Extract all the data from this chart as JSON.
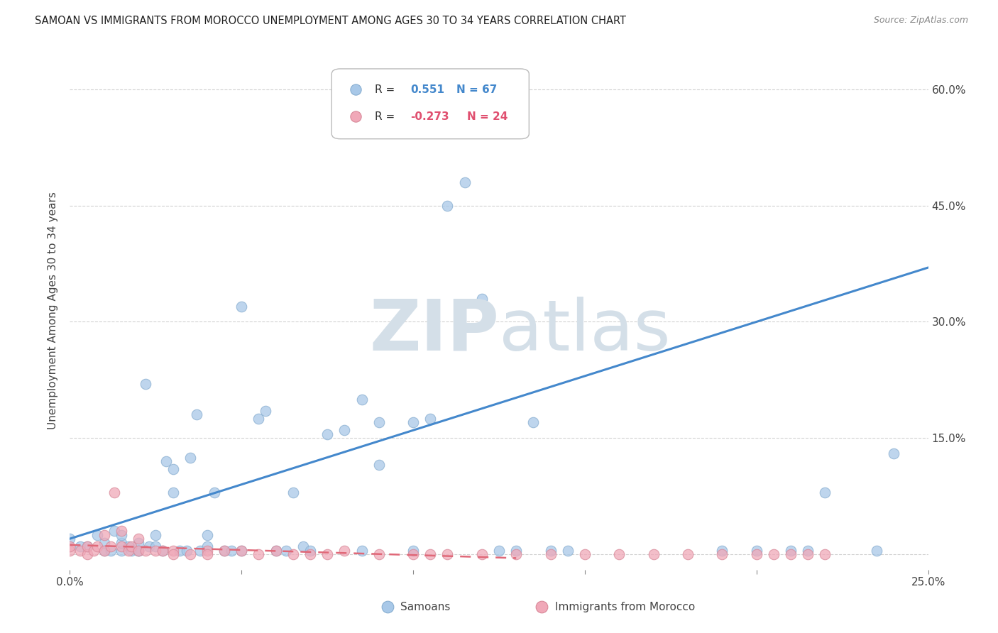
{
  "title": "SAMOAN VS IMMIGRANTS FROM MOROCCO UNEMPLOYMENT AMONG AGES 30 TO 34 YEARS CORRELATION CHART",
  "source": "Source: ZipAtlas.com",
  "ylabel": "Unemployment Among Ages 30 to 34 years",
  "xlim": [
    0.0,
    0.25
  ],
  "ylim": [
    -0.02,
    0.65
  ],
  "xticks": [
    0.0,
    0.05,
    0.1,
    0.15,
    0.2,
    0.25
  ],
  "xtick_labels": [
    "0.0%",
    "",
    "",
    "",
    "",
    "25.0%"
  ],
  "yticks": [
    0.0,
    0.15,
    0.3,
    0.45,
    0.6
  ],
  "ytick_labels_right": [
    "",
    "15.0%",
    "30.0%",
    "45.0%",
    "60.0%"
  ],
  "background_color": "#ffffff",
  "grid_color": "#cccccc",
  "watermark_color": "#d4dfe8",
  "samoan_color": "#a8c8e8",
  "morocco_color": "#f0a8b8",
  "samoan_edge": "#88aed0",
  "morocco_edge": "#d88898",
  "trend_samoan_color": "#4488cc",
  "trend_morocco_color": "#e06878",
  "scatter_alpha": 0.75,
  "marker_size": 110,
  "samoan_points_x": [
    0.0,
    0.003,
    0.005,
    0.008,
    0.01,
    0.01,
    0.012,
    0.013,
    0.015,
    0.015,
    0.015,
    0.017,
    0.018,
    0.02,
    0.02,
    0.02,
    0.022,
    0.023,
    0.025,
    0.025,
    0.027,
    0.028,
    0.03,
    0.03,
    0.032,
    0.034,
    0.035,
    0.037,
    0.038,
    0.04,
    0.04,
    0.042,
    0.045,
    0.047,
    0.05,
    0.05,
    0.055,
    0.057,
    0.06,
    0.063,
    0.065,
    0.068,
    0.07,
    0.075,
    0.08,
    0.085,
    0.085,
    0.09,
    0.09,
    0.1,
    0.1,
    0.105,
    0.11,
    0.115,
    0.12,
    0.125,
    0.13,
    0.135,
    0.14,
    0.145,
    0.19,
    0.2,
    0.21,
    0.215,
    0.22,
    0.235,
    0.24
  ],
  "samoan_points_y": [
    0.02,
    0.01,
    0.01,
    0.025,
    0.005,
    0.015,
    0.005,
    0.03,
    0.005,
    0.015,
    0.025,
    0.01,
    0.005,
    0.005,
    0.015,
    0.005,
    0.22,
    0.01,
    0.01,
    0.025,
    0.005,
    0.12,
    0.08,
    0.11,
    0.005,
    0.005,
    0.125,
    0.18,
    0.005,
    0.01,
    0.025,
    0.08,
    0.005,
    0.005,
    0.005,
    0.32,
    0.175,
    0.185,
    0.005,
    0.005,
    0.08,
    0.01,
    0.005,
    0.155,
    0.16,
    0.2,
    0.005,
    0.115,
    0.17,
    0.005,
    0.17,
    0.175,
    0.45,
    0.48,
    0.33,
    0.005,
    0.005,
    0.17,
    0.005,
    0.005,
    0.005,
    0.005,
    0.005,
    0.005,
    0.08,
    0.005,
    0.13
  ],
  "morocco_points_x": [
    0.0,
    0.0,
    0.003,
    0.005,
    0.005,
    0.007,
    0.008,
    0.01,
    0.01,
    0.012,
    0.013,
    0.015,
    0.015,
    0.017,
    0.018,
    0.02,
    0.02,
    0.022,
    0.025,
    0.027,
    0.03,
    0.03,
    0.035,
    0.04,
    0.04,
    0.045,
    0.05,
    0.055,
    0.06,
    0.065,
    0.07,
    0.075,
    0.08,
    0.09,
    0.1,
    0.105,
    0.11,
    0.12,
    0.13,
    0.14,
    0.15,
    0.16,
    0.17,
    0.18,
    0.19,
    0.2,
    0.205,
    0.21,
    0.215,
    0.22
  ],
  "morocco_points_y": [
    0.005,
    0.01,
    0.005,
    0.0,
    0.01,
    0.005,
    0.01,
    0.005,
    0.025,
    0.01,
    0.08,
    0.03,
    0.01,
    0.005,
    0.01,
    0.005,
    0.02,
    0.005,
    0.005,
    0.005,
    0.005,
    0.0,
    0.0,
    0.005,
    0.0,
    0.005,
    0.005,
    0.0,
    0.005,
    0.0,
    0.0,
    0.0,
    0.005,
    0.0,
    0.0,
    0.0,
    0.0,
    0.0,
    0.0,
    0.0,
    0.0,
    0.0,
    0.0,
    0.0,
    0.0,
    0.0,
    0.0,
    0.0,
    0.0,
    0.0
  ],
  "samoan_trend_x": [
    0.0,
    0.25
  ],
  "samoan_trend_y": [
    0.02,
    0.37
  ],
  "morocco_trend_x": [
    0.0,
    0.13
  ],
  "morocco_trend_y": [
    0.012,
    -0.005
  ],
  "legend_samoan_label": "Samoans",
  "legend_morocco_label": "Immigrants from Morocco"
}
